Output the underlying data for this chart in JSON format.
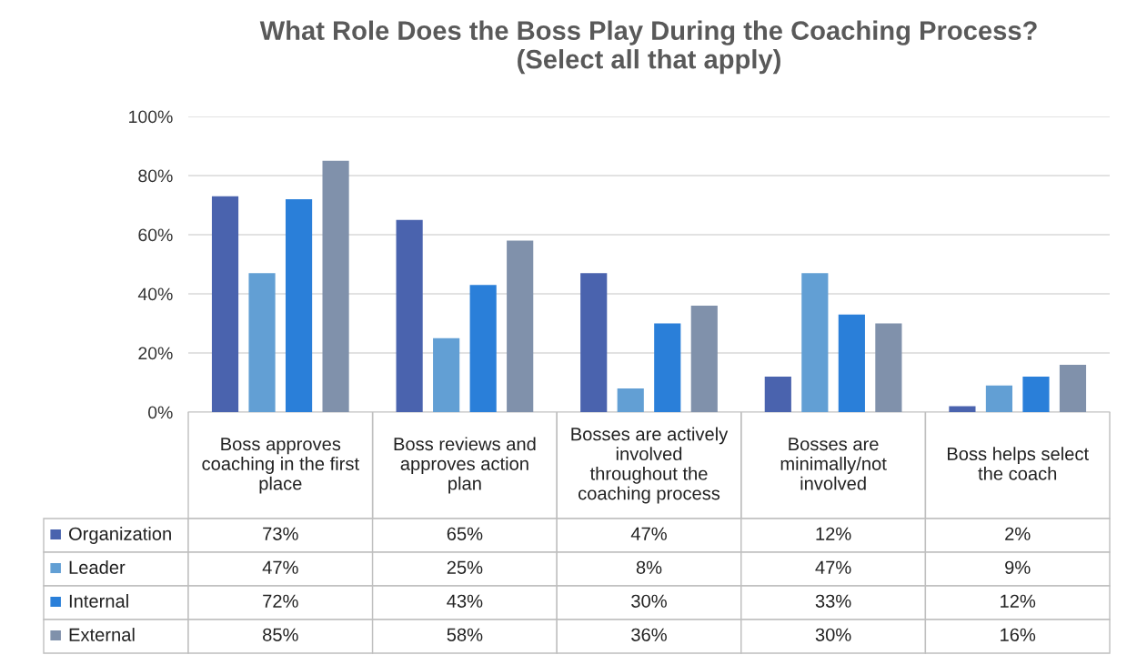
{
  "chart_data": {
    "type": "bar",
    "title": "What Role Does the Boss Play During the Coaching Process?\n(Select all that apply)",
    "categories": [
      "Boss approves coaching in the first place",
      "Boss reviews and approves action plan",
      "Bosses are actively involved throughout the coaching process",
      "Bosses are minimally/not involved",
      "Boss helps select the coach"
    ],
    "series": [
      {
        "name": "Organization",
        "color": "#4a63ae",
        "values": [
          73,
          65,
          47,
          12,
          2
        ],
        "value_labels": [
          "73%",
          "65%",
          "47%",
          "12%",
          "2%"
        ]
      },
      {
        "name": "Leader",
        "color": "#629fd4",
        "values": [
          47,
          25,
          8,
          47,
          9
        ],
        "value_labels": [
          "47%",
          "25%",
          "8%",
          "47%",
          "9%"
        ]
      },
      {
        "name": "Internal",
        "color": "#2a7fd9",
        "values": [
          72,
          43,
          30,
          33,
          12
        ],
        "value_labels": [
          "72%",
          "43%",
          "30%",
          "33%",
          "12%"
        ]
      },
      {
        "name": "External",
        "color": "#8091ab",
        "values": [
          85,
          58,
          36,
          30,
          16
        ],
        "value_labels": [
          "85%",
          "58%",
          "36%",
          "30%",
          "16%"
        ]
      }
    ],
    "ylim": [
      0,
      100
    ],
    "yticks": [
      {
        "value": 0,
        "label": "0%"
      },
      {
        "value": 20,
        "label": "20%"
      },
      {
        "value": 40,
        "label": "40%"
      },
      {
        "value": 60,
        "label": "60%"
      },
      {
        "value": 80,
        "label": "80%"
      },
      {
        "value": 100,
        "label": "100%"
      }
    ],
    "grid": "y",
    "legend": "left"
  }
}
